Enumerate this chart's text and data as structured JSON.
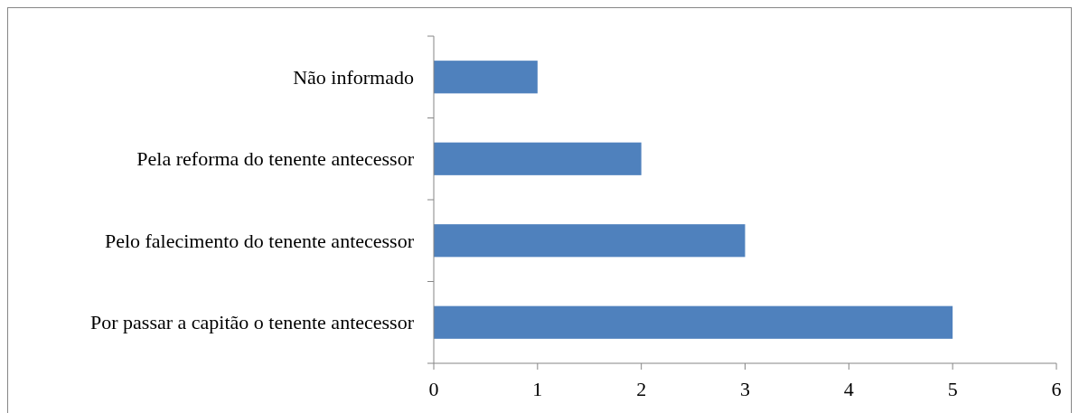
{
  "chart_data": {
    "type": "bar",
    "orientation": "horizontal",
    "categories": [
      "Não informado",
      "Pela reforma do tenente antecessor",
      "Pelo falecimento do tenente antecessor",
      "Por passar a capitão o tenente antecessor"
    ],
    "values": [
      1,
      2,
      3,
      5
    ],
    "color": "#4f81bd",
    "xlim": [
      0,
      6
    ],
    "xticks": [
      0,
      1,
      2,
      3,
      4,
      5,
      6
    ]
  }
}
